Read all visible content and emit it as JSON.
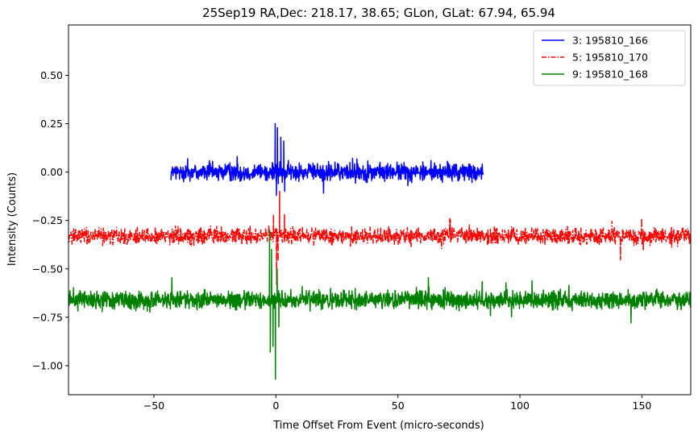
{
  "chart_data": {
    "type": "line",
    "title": "25Sep19 RA,Dec:  218.17,  38.65; GLon, GLat:   67.94,  65.94",
    "xlabel": "Time Offset From Event (micro-seconds)",
    "ylabel": "Intensity (Counts)",
    "xlim": [
      -85,
      170
    ],
    "ylim": [
      -1.15,
      0.76
    ],
    "xticks": [
      -50,
      0,
      50,
      100,
      150
    ],
    "xtick_labels": [
      "−50",
      "0",
      "50",
      "100",
      "150"
    ],
    "yticks": [
      0.5,
      0.25,
      0.0,
      -0.25,
      -0.5,
      -0.75,
      -1.0
    ],
    "ytick_labels": [
      "0.50",
      "0.25",
      "0.00",
      "−0.25",
      "−0.50",
      "−0.75",
      "−1.00"
    ],
    "grid": false,
    "legend_position": "top-right",
    "series": [
      {
        "name": "3: 195810_166",
        "color": "#0000ff",
        "style": "solid",
        "x_range": [
          -43,
          85
        ],
        "baseline": 0.0,
        "noise_amplitude": 0.05,
        "spikes": [
          {
            "x": -0.3,
            "y": 0.25
          },
          {
            "x": 0.2,
            "y": -0.12
          },
          {
            "x": 0.6,
            "y": 0.23
          },
          {
            "x": 1.0,
            "y": -0.06
          },
          {
            "x": 2.0,
            "y": 0.18
          },
          {
            "x": 3.2,
            "y": 0.16
          },
          {
            "x": 3.6,
            "y": -0.1
          }
        ]
      },
      {
        "name": "5: 195810_170",
        "color": "#ff0000",
        "style": "dashdot",
        "x_range": [
          -85,
          170
        ],
        "baseline": -0.33,
        "noise_amplitude": 0.045,
        "spikes": [
          {
            "x": -1.0,
            "y": -0.22
          },
          {
            "x": 0.3,
            "y": -0.58
          },
          {
            "x": 0.9,
            "y": -0.46
          },
          {
            "x": 1.5,
            "y": -0.1
          },
          {
            "x": 3.5,
            "y": -0.22
          }
        ]
      },
      {
        "name": "9: 195810_168",
        "color": "#008000",
        "style": "solid",
        "x_range": [
          -85,
          170
        ],
        "baseline": -0.66,
        "noise_amplitude": 0.05,
        "spikes": [
          {
            "x": -2.6,
            "y": -0.3
          },
          {
            "x": -2.3,
            "y": -0.93
          },
          {
            "x": -1.8,
            "y": -0.4
          },
          {
            "x": -1.2,
            "y": -0.9
          },
          {
            "x": -0.2,
            "y": -1.07
          },
          {
            "x": 0.5,
            "y": -0.5
          },
          {
            "x": 1.2,
            "y": -0.8
          }
        ]
      }
    ]
  }
}
